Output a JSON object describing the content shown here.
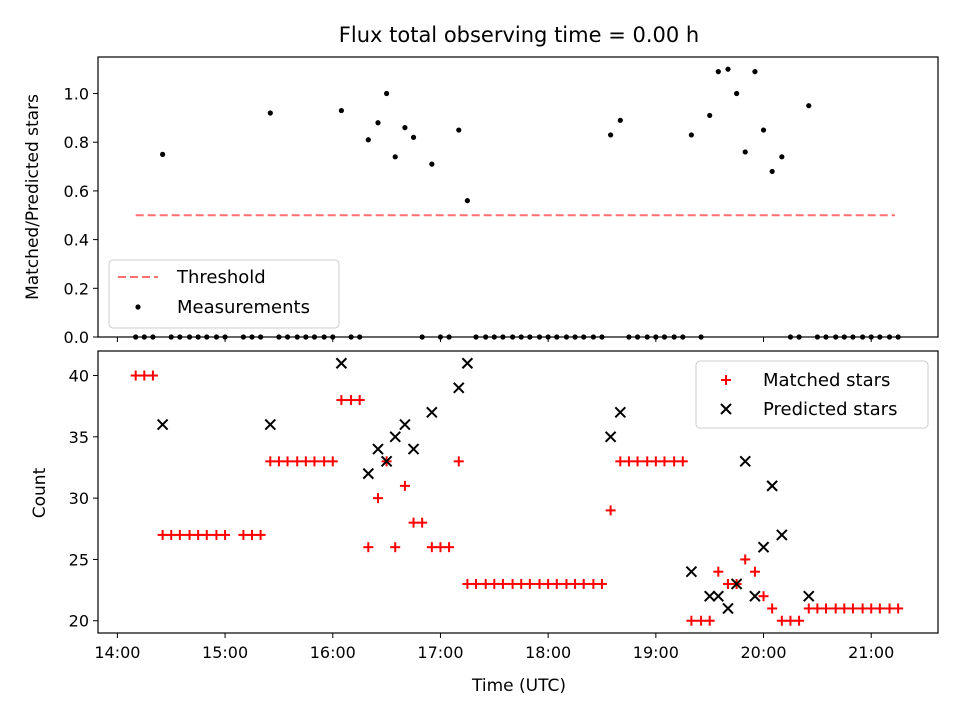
{
  "chart_data": [
    {
      "type": "scatter",
      "title": "Flux total observing time = 0.00 h",
      "xlabel": "",
      "ylabel": "Matched/Predicted stars",
      "xlim": [
        13.82,
        21.62
      ],
      "ylim": [
        0.0,
        1.15
      ],
      "yticks": [
        0.0,
        0.2,
        0.4,
        0.6,
        0.8,
        1.0
      ],
      "ytick_labels": [
        "0.0",
        "0.2",
        "0.4",
        "0.6",
        "0.8",
        "1.0"
      ],
      "xticks": [
        14,
        15,
        16,
        17,
        18,
        19,
        20,
        21
      ],
      "legend_position": "lower-left",
      "threshold": {
        "name": "Threshold",
        "value": 0.5,
        "x_range": [
          14.17,
          21.22
        ],
        "color": "#ff6f6f"
      },
      "series": [
        {
          "name": "Measurements",
          "color": "#000000",
          "points": [
            [
              14.17,
              0.0
            ],
            [
              14.25,
              0.0
            ],
            [
              14.33,
              0.0
            ],
            [
              14.42,
              0.75
            ],
            [
              14.5,
              0.0
            ],
            [
              14.58,
              0.0
            ],
            [
              14.67,
              0.0
            ],
            [
              14.75,
              0.0
            ],
            [
              14.83,
              0.0
            ],
            [
              14.92,
              0.0
            ],
            [
              15.0,
              0.0
            ],
            [
              15.17,
              0.0
            ],
            [
              15.25,
              0.0
            ],
            [
              15.33,
              0.0
            ],
            [
              15.42,
              0.92
            ],
            [
              15.5,
              0.0
            ],
            [
              15.58,
              0.0
            ],
            [
              15.67,
              0.0
            ],
            [
              15.75,
              0.0
            ],
            [
              15.83,
              0.0
            ],
            [
              15.92,
              0.0
            ],
            [
              16.0,
              0.0
            ],
            [
              16.08,
              0.93
            ],
            [
              16.17,
              0.0
            ],
            [
              16.25,
              0.0
            ],
            [
              16.33,
              0.81
            ],
            [
              16.42,
              0.88
            ],
            [
              16.5,
              1.0
            ],
            [
              16.58,
              0.74
            ],
            [
              16.67,
              0.86
            ],
            [
              16.75,
              0.82
            ],
            [
              16.83,
              0.0
            ],
            [
              16.92,
              0.71
            ],
            [
              17.0,
              0.0
            ],
            [
              17.08,
              0.0
            ],
            [
              17.17,
              0.85
            ],
            [
              17.25,
              0.56
            ],
            [
              17.33,
              0.0
            ],
            [
              17.42,
              0.0
            ],
            [
              17.5,
              0.0
            ],
            [
              17.58,
              0.0
            ],
            [
              17.67,
              0.0
            ],
            [
              17.75,
              0.0
            ],
            [
              17.83,
              0.0
            ],
            [
              17.92,
              0.0
            ],
            [
              18.0,
              0.0
            ],
            [
              18.08,
              0.0
            ],
            [
              18.17,
              0.0
            ],
            [
              18.25,
              0.0
            ],
            [
              18.33,
              0.0
            ],
            [
              18.42,
              0.0
            ],
            [
              18.5,
              0.0
            ],
            [
              18.58,
              0.83
            ],
            [
              18.67,
              0.89
            ],
            [
              18.75,
              0.0
            ],
            [
              18.83,
              0.0
            ],
            [
              18.92,
              0.0
            ],
            [
              19.0,
              0.0
            ],
            [
              19.08,
              0.0
            ],
            [
              19.17,
              0.0
            ],
            [
              19.25,
              0.0
            ],
            [
              19.33,
              0.83
            ],
            [
              19.42,
              0.0
            ],
            [
              19.5,
              0.91
            ],
            [
              19.58,
              1.09
            ],
            [
              19.67,
              1.1
            ],
            [
              19.75,
              1.0
            ],
            [
              19.83,
              0.76
            ],
            [
              19.92,
              1.09
            ],
            [
              20.0,
              0.85
            ],
            [
              20.08,
              0.68
            ],
            [
              20.17,
              0.74
            ],
            [
              20.25,
              0.0
            ],
            [
              20.33,
              0.0
            ],
            [
              20.42,
              0.95
            ],
            [
              20.5,
              0.0
            ],
            [
              20.58,
              0.0
            ],
            [
              20.67,
              0.0
            ],
            [
              20.75,
              0.0
            ],
            [
              20.83,
              0.0
            ],
            [
              20.92,
              0.0
            ],
            [
              21.0,
              0.0
            ],
            [
              21.08,
              0.0
            ],
            [
              21.17,
              0.0
            ],
            [
              21.25,
              0.0
            ]
          ]
        }
      ]
    },
    {
      "type": "scatter",
      "title": "",
      "xlabel": "Time (UTC)",
      "ylabel": "Count",
      "xlim": [
        13.82,
        21.62
      ],
      "ylim": [
        19.0,
        42.0
      ],
      "yticks": [
        20,
        25,
        30,
        35,
        40
      ],
      "ytick_labels": [
        "20",
        "25",
        "30",
        "35",
        "40"
      ],
      "xticks": [
        14,
        15,
        16,
        17,
        18,
        19,
        20,
        21
      ],
      "xtick_labels": [
        "14:00",
        "15:00",
        "16:00",
        "17:00",
        "18:00",
        "19:00",
        "20:00",
        "21:00"
      ],
      "legend_position": "top-right",
      "series": [
        {
          "name": "Matched stars",
          "marker": "plus",
          "color": "#ff0000",
          "points": [
            [
              14.17,
              40
            ],
            [
              14.25,
              40
            ],
            [
              14.33,
              40
            ],
            [
              14.42,
              27
            ],
            [
              14.5,
              27
            ],
            [
              14.58,
              27
            ],
            [
              14.67,
              27
            ],
            [
              14.75,
              27
            ],
            [
              14.83,
              27
            ],
            [
              14.92,
              27
            ],
            [
              15.0,
              27
            ],
            [
              15.17,
              27
            ],
            [
              15.25,
              27
            ],
            [
              15.33,
              27
            ],
            [
              15.42,
              33
            ],
            [
              15.5,
              33
            ],
            [
              15.58,
              33
            ],
            [
              15.67,
              33
            ],
            [
              15.75,
              33
            ],
            [
              15.83,
              33
            ],
            [
              15.92,
              33
            ],
            [
              16.0,
              33
            ],
            [
              16.08,
              38
            ],
            [
              16.17,
              38
            ],
            [
              16.25,
              38
            ],
            [
              16.33,
              26
            ],
            [
              16.42,
              30
            ],
            [
              16.5,
              33
            ],
            [
              16.58,
              26
            ],
            [
              16.67,
              31
            ],
            [
              16.75,
              28
            ],
            [
              16.83,
              28
            ],
            [
              16.92,
              26
            ],
            [
              17.0,
              26
            ],
            [
              17.08,
              26
            ],
            [
              17.17,
              33
            ],
            [
              17.25,
              23
            ],
            [
              17.33,
              23
            ],
            [
              17.42,
              23
            ],
            [
              17.5,
              23
            ],
            [
              17.58,
              23
            ],
            [
              17.67,
              23
            ],
            [
              17.75,
              23
            ],
            [
              17.83,
              23
            ],
            [
              17.92,
              23
            ],
            [
              18.0,
              23
            ],
            [
              18.08,
              23
            ],
            [
              18.17,
              23
            ],
            [
              18.25,
              23
            ],
            [
              18.33,
              23
            ],
            [
              18.42,
              23
            ],
            [
              18.5,
              23
            ],
            [
              18.58,
              29
            ],
            [
              18.67,
              33
            ],
            [
              18.75,
              33
            ],
            [
              18.83,
              33
            ],
            [
              18.92,
              33
            ],
            [
              19.0,
              33
            ],
            [
              19.08,
              33
            ],
            [
              19.17,
              33
            ],
            [
              19.25,
              33
            ],
            [
              19.33,
              20
            ],
            [
              19.42,
              20
            ],
            [
              19.5,
              20
            ],
            [
              19.58,
              24
            ],
            [
              19.67,
              23
            ],
            [
              19.75,
              23
            ],
            [
              19.83,
              25
            ],
            [
              19.92,
              24
            ],
            [
              20.0,
              22
            ],
            [
              20.08,
              21
            ],
            [
              20.17,
              20
            ],
            [
              20.25,
              20
            ],
            [
              20.33,
              20
            ],
            [
              20.42,
              21
            ],
            [
              20.5,
              21
            ],
            [
              20.58,
              21
            ],
            [
              20.67,
              21
            ],
            [
              20.75,
              21
            ],
            [
              20.83,
              21
            ],
            [
              20.92,
              21
            ],
            [
              21.0,
              21
            ],
            [
              21.08,
              21
            ],
            [
              21.17,
              21
            ],
            [
              21.25,
              21
            ]
          ]
        },
        {
          "name": "Predicted stars",
          "marker": "x",
          "color": "#000000",
          "points": [
            [
              14.42,
              36
            ],
            [
              15.42,
              36
            ],
            [
              16.08,
              41
            ],
            [
              16.33,
              32
            ],
            [
              16.42,
              34
            ],
            [
              16.5,
              33
            ],
            [
              16.58,
              35
            ],
            [
              16.67,
              36
            ],
            [
              16.75,
              34
            ],
            [
              16.92,
              37
            ],
            [
              17.17,
              39
            ],
            [
              17.25,
              41
            ],
            [
              18.58,
              35
            ],
            [
              18.67,
              37
            ],
            [
              19.33,
              24
            ],
            [
              19.5,
              22
            ],
            [
              19.58,
              22
            ],
            [
              19.67,
              21
            ],
            [
              19.75,
              23
            ],
            [
              19.83,
              33
            ],
            [
              19.92,
              22
            ],
            [
              20.0,
              26
            ],
            [
              20.08,
              31
            ],
            [
              20.17,
              27
            ],
            [
              20.42,
              22
            ]
          ]
        }
      ]
    }
  ]
}
